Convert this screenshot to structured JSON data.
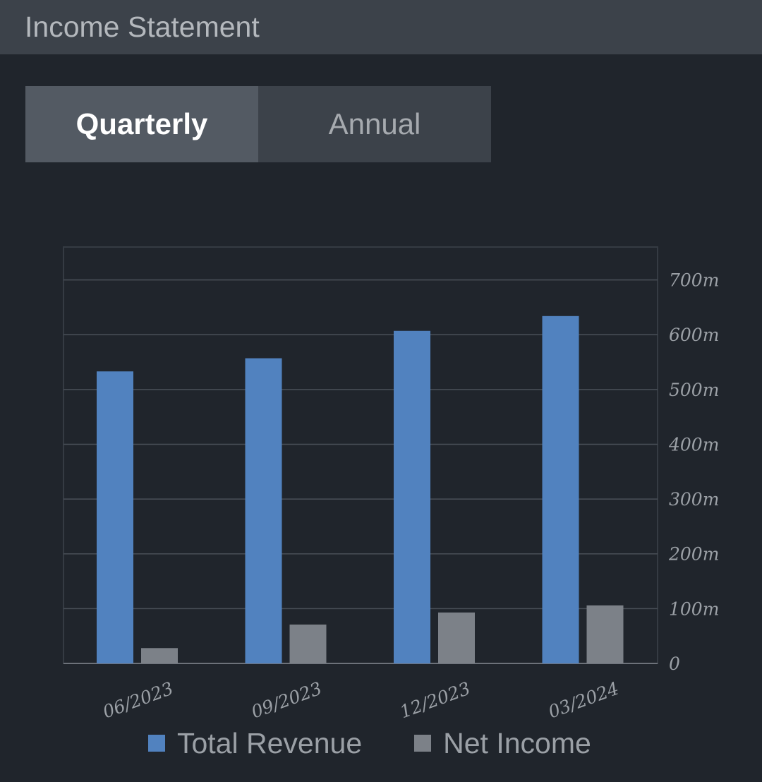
{
  "header": {
    "title": "Income Statement"
  },
  "period_tabs": {
    "items": [
      {
        "label": "Quarterly",
        "active": true
      },
      {
        "label": "Annual",
        "active": false
      }
    ]
  },
  "chart_data": {
    "type": "bar",
    "categories": [
      "06/2023",
      "09/2023",
      "12/2023",
      "03/2024"
    ],
    "series": [
      {
        "name": "Total Revenue",
        "color": "#5182bf",
        "values": [
          533,
          557,
          607,
          634
        ]
      },
      {
        "name": "Net Income",
        "color": "#7c8188",
        "values": [
          28,
          71,
          93,
          106
        ]
      }
    ],
    "y_axis": {
      "position": "right",
      "ylim": [
        0,
        760
      ],
      "ticks": [
        0,
        100,
        200,
        300,
        400,
        500,
        600,
        700
      ],
      "tick_labels": [
        "0",
        "100m",
        "200m",
        "300m",
        "400m",
        "500m",
        "600m",
        "700m"
      ]
    },
    "grid": true,
    "legend_position": "bottom"
  }
}
